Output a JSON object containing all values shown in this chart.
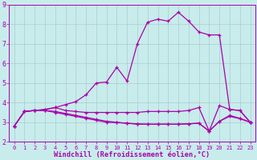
{
  "title": "",
  "xlabel": "Windchill (Refroidissement éolien,°C)",
  "ylabel": "",
  "bg_color": "#c8ecec",
  "grid_color": "#aacccc",
  "line_color": "#aa00aa",
  "xlim": [
    -0.5,
    23.5
  ],
  "ylim": [
    2,
    9
  ],
  "xticks": [
    0,
    1,
    2,
    3,
    4,
    5,
    6,
    7,
    8,
    9,
    10,
    11,
    12,
    13,
    14,
    15,
    16,
    17,
    18,
    19,
    20,
    21,
    22,
    23
  ],
  "yticks": [
    2,
    3,
    4,
    5,
    6,
    7,
    8,
    9
  ],
  "series": [
    [
      2.8,
      3.55,
      3.6,
      3.65,
      3.75,
      3.9,
      4.05,
      4.4,
      5.0,
      5.05,
      5.8,
      5.1,
      7.0,
      8.1,
      8.25,
      8.15,
      8.6,
      8.15,
      7.6,
      7.45,
      7.45,
      3.65,
      3.6,
      3.0
    ],
    [
      2.8,
      3.55,
      3.6,
      3.65,
      3.75,
      3.6,
      3.55,
      3.5,
      3.5,
      3.5,
      3.5,
      3.5,
      3.5,
      3.55,
      3.55,
      3.55,
      3.55,
      3.6,
      3.75,
      2.55,
      3.85,
      3.65,
      3.6,
      3.0
    ],
    [
      2.8,
      3.55,
      3.6,
      3.6,
      3.55,
      3.45,
      3.35,
      3.25,
      3.15,
      3.05,
      3.0,
      2.95,
      2.9,
      2.9,
      2.9,
      2.9,
      2.9,
      2.92,
      2.95,
      2.55,
      3.05,
      3.35,
      3.2,
      3.0
    ],
    [
      2.8,
      3.55,
      3.6,
      3.6,
      3.5,
      3.4,
      3.3,
      3.2,
      3.1,
      3.0,
      2.98,
      2.95,
      2.92,
      2.9,
      2.9,
      2.9,
      2.9,
      2.92,
      2.95,
      2.55,
      3.05,
      3.3,
      3.18,
      3.0
    ]
  ],
  "marker": "+",
  "markersize": 3,
  "linewidth": 0.9,
  "tick_fontsize_x": 5.0,
  "tick_fontsize_y": 6.0,
  "xlabel_fontsize": 6.2
}
